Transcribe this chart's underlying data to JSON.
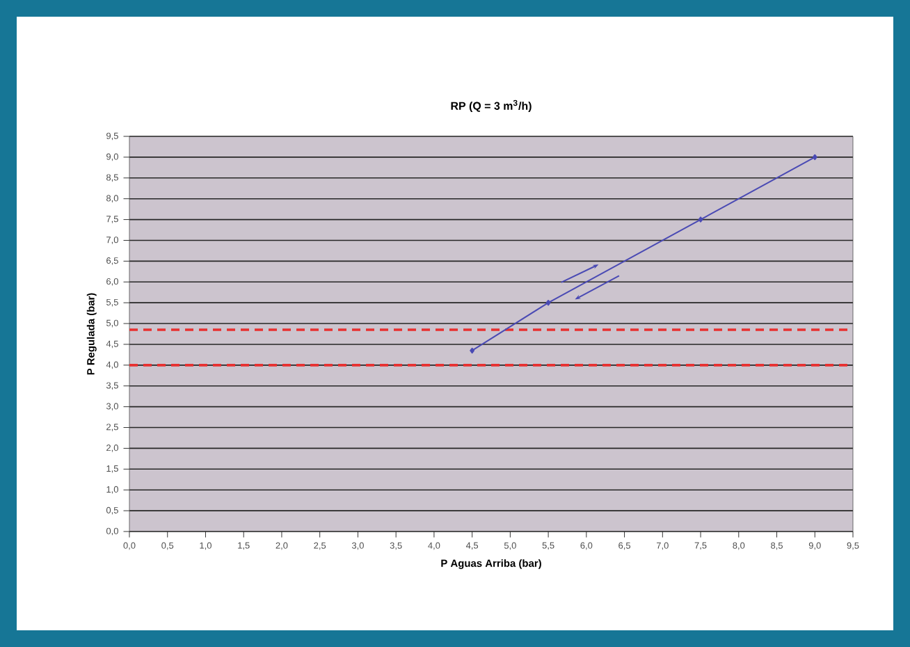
{
  "chart_data": {
    "type": "line",
    "title": "RP (Q = 3 m$^{3}$/h)",
    "xlabel": "P Aguas Arriba (bar)",
    "ylabel": "P Regulada (bar)",
    "x": [
      4.5,
      5.5,
      7.5,
      9.0
    ],
    "series": [
      {
        "color": "#4a4ab4",
        "values": [
          4.35,
          5.5,
          7.5,
          9.0
        ]
      }
    ],
    "xlim": [
      0,
      9.5
    ],
    "ylim": [
      0,
      9.5
    ],
    "xticks": [
      {
        "value": 0,
        "label": "0,0"
      },
      {
        "value": 0.5,
        "label": "0,5"
      },
      {
        "value": 1,
        "label": "1,0"
      },
      {
        "value": 1.5,
        "label": "1,5"
      },
      {
        "value": 2,
        "label": "2,0"
      },
      {
        "value": 2.5,
        "label": "2,5"
      },
      {
        "value": 3,
        "label": "3,0"
      },
      {
        "value": 3.5,
        "label": "3,5"
      },
      {
        "value": 4,
        "label": "4,0"
      },
      {
        "value": 4.5,
        "label": "4,5"
      },
      {
        "value": 5,
        "label": "5,0"
      },
      {
        "value": 5.5,
        "label": "5,5"
      },
      {
        "value": 6,
        "label": "6,0"
      },
      {
        "value": 6.5,
        "label": "6,5"
      },
      {
        "value": 7,
        "label": "7,0"
      },
      {
        "value": 7.5,
        "label": "7,5"
      },
      {
        "value": 8,
        "label": "8,0"
      },
      {
        "value": 8.5,
        "label": "8,5"
      },
      {
        "value": 9,
        "label": "9,0"
      },
      {
        "value": 9.5,
        "label": "9,5"
      }
    ],
    "yticks": [
      {
        "value": 0,
        "label": "0,0"
      },
      {
        "value": 0.5,
        "label": "0,5"
      },
      {
        "value": 1,
        "label": "1,0"
      },
      {
        "value": 1.5,
        "label": "1,5"
      },
      {
        "value": 2,
        "label": "2,0"
      },
      {
        "value": 2.5,
        "label": "2,5"
      },
      {
        "value": 3,
        "label": "3,0"
      },
      {
        "value": 3.5,
        "label": "3,5"
      },
      {
        "value": 4,
        "label": "4,0"
      },
      {
        "value": 4.5,
        "label": "4,5"
      },
      {
        "value": 5,
        "label": "5,0"
      },
      {
        "value": 5.5,
        "label": "5,5"
      },
      {
        "value": 6,
        "label": "6,0"
      },
      {
        "value": 6.5,
        "label": "6,5"
      },
      {
        "value": 7,
        "label": "7,0"
      },
      {
        "value": 7.5,
        "label": "7,5"
      },
      {
        "value": 8,
        "label": "8,0"
      },
      {
        "value": 8.5,
        "label": "8,5"
      },
      {
        "value": 9,
        "label": "9,0"
      },
      {
        "value": 9.5,
        "label": "9,5"
      }
    ],
    "ref_lines": [
      {
        "axis": "y",
        "value": 4.85,
        "color": "#e83030",
        "line_style": "dashed"
      },
      {
        "axis": "y",
        "value": 4.0,
        "color": "#e83030",
        "line_style": "dashed"
      }
    ],
    "grid": "y",
    "marker": "diamond",
    "line_style": "solid"
  }
}
